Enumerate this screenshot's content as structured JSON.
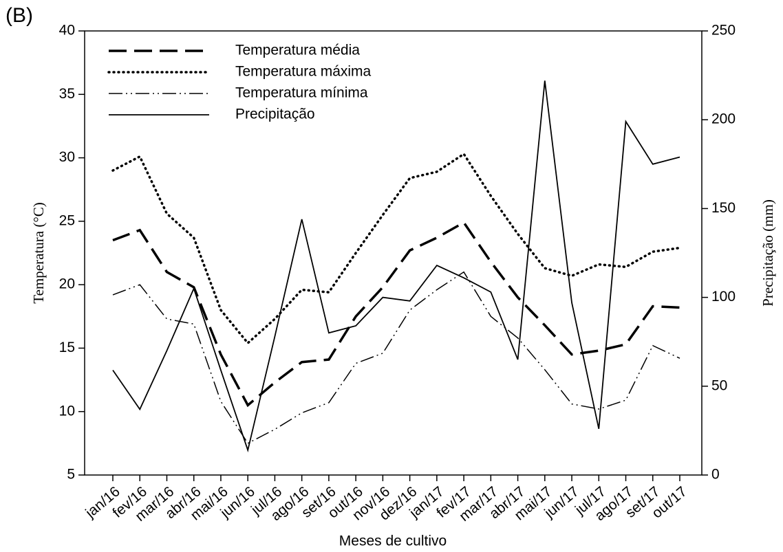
{
  "chart_data": {
    "type": "line",
    "panel_label": "(B)",
    "x_label": "Meses de cultivo",
    "y_label": "Temperatura (°C)",
    "y2_label": "Precipitação (mm)",
    "categories": [
      "jan/16",
      "fev/16",
      "mar/16",
      "abr/16",
      "mai/16",
      "jun/16",
      "jul/16",
      "ago/16",
      "set/16",
      "out/16",
      "nov/16",
      "dez/16",
      "jan/17",
      "fev/17",
      "mar/17",
      "abr/17",
      "mai/17",
      "jun/17",
      "jul/17",
      "ago/17",
      "set/17",
      "out/17"
    ],
    "series": [
      {
        "name": "Temperatura média",
        "color": "#000000",
        "style": "dashed",
        "values": [
          23.5,
          24.3,
          21.0,
          19.8,
          14.5,
          10.5,
          12.3,
          13.9,
          14.1,
          17.5,
          19.8,
          22.7,
          23.7,
          24.9,
          21.8,
          19.0,
          16.8,
          14.5,
          14.8,
          15.3,
          18.3,
          18.2
        ]
      },
      {
        "name": "Temperatura máxima",
        "color": "#000000",
        "style": "dotted",
        "values": [
          29.0,
          30.1,
          25.6,
          23.7,
          18.0,
          15.4,
          17.3,
          19.6,
          19.4,
          22.5,
          25.5,
          28.4,
          28.9,
          30.3,
          27.0,
          24.0,
          21.3,
          20.7,
          21.6,
          21.4,
          22.6,
          22.9
        ]
      },
      {
        "name": "Temperatura mínima",
        "color": "#000000",
        "style": "dashdotdot",
        "values": [
          19.2,
          20.0,
          17.3,
          16.9,
          10.8,
          7.5,
          8.6,
          9.9,
          10.7,
          13.8,
          14.6,
          18.0,
          19.6,
          21.0,
          17.5,
          15.8,
          13.3,
          10.6,
          10.2,
          10.9,
          15.2,
          14.2
        ]
      },
      {
        "name": "Precipitação",
        "color": "#000000",
        "style": "solid",
        "axis": "y2",
        "values": [
          59,
          37,
          70,
          105,
          59,
          14,
          78,
          144,
          80,
          84,
          100,
          98,
          118,
          111,
          103,
          65,
          222,
          97,
          26,
          199,
          175,
          179
        ]
      }
    ],
    "ylim": [
      5,
      40
    ],
    "yticks": [
      5,
      10,
      15,
      20,
      25,
      30,
      35,
      40
    ],
    "y2lim": [
      0,
      250
    ],
    "y2ticks": [
      0,
      50,
      100,
      150,
      200,
      250
    ],
    "legend": "upper left"
  }
}
